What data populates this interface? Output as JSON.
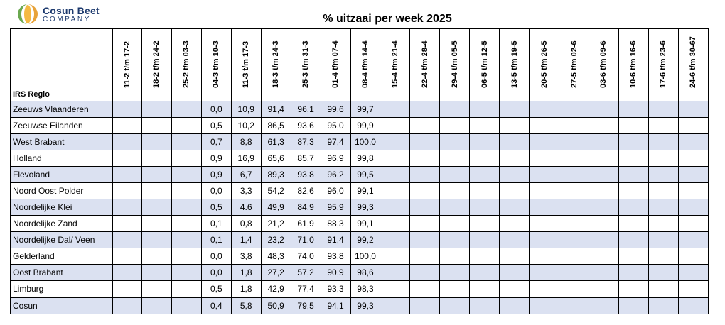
{
  "brand": {
    "name": "Cosun Beet",
    "sub": "COMPANY",
    "icon": "cosun-logo-icon",
    "colors": [
      "#e8a33a",
      "#6aa84f",
      "#1d3a6e"
    ]
  },
  "title": "% uitzaai per week 2025",
  "table": {
    "region_header": "IRS Regio",
    "weeks": [
      "11-2 t/m 17-2",
      "18-2 t/m 24-2",
      "25-2 t/m 03-3",
      "04-3 t/m 10-3",
      "11-3 t/m 17-3",
      "18-3 t/m 24-3",
      "25-3 t/m 31-3",
      "01-4 t/m 07-4",
      "08-4 t/m 14-4",
      "15-4 t/m 21-4",
      "22-4 t/m 28-4",
      "29-4 t/m 05-5",
      "06-5 t/m 12-5",
      "13-5 t/m 19-5",
      "20-5 t/m 26-5",
      "27-5 t/m 02-6",
      "03-6 t/m 09-6",
      "10-6 t/m 16-6",
      "17-6 t/m 23-6",
      "24-6 t/m 30-67"
    ],
    "rows": [
      {
        "region": "Zeeuws Vlaanderen",
        "values": [
          "",
          "",
          "",
          "0,0",
          "10,9",
          "91,4",
          "96,1",
          "99,6",
          "99,7",
          "",
          "",
          "",
          "",
          "",
          "",
          "",
          "",
          "",
          "",
          ""
        ]
      },
      {
        "region": "Zeeuwse Eilanden",
        "values": [
          "",
          "",
          "",
          "0,5",
          "10,2",
          "86,5",
          "93,6",
          "95,0",
          "99,9",
          "",
          "",
          "",
          "",
          "",
          "",
          "",
          "",
          "",
          "",
          ""
        ]
      },
      {
        "region": "West Brabant",
        "values": [
          "",
          "",
          "",
          "0,7",
          "8,8",
          "61,3",
          "87,3",
          "97,4",
          "100,0",
          "",
          "",
          "",
          "",
          "",
          "",
          "",
          "",
          "",
          "",
          ""
        ]
      },
      {
        "region": "Holland",
        "values": [
          "",
          "",
          "",
          "0,9",
          "16,9",
          "65,6",
          "85,7",
          "96,9",
          "99,8",
          "",
          "",
          "",
          "",
          "",
          "",
          "",
          "",
          "",
          "",
          ""
        ]
      },
      {
        "region": "Flevoland",
        "values": [
          "",
          "",
          "",
          "0,9",
          "6,7",
          "89,3",
          "93,8",
          "96,2",
          "99,5",
          "",
          "",
          "",
          "",
          "",
          "",
          "",
          "",
          "",
          "",
          ""
        ]
      },
      {
        "region": "Noord Oost Polder",
        "values": [
          "",
          "",
          "",
          "0,0",
          "3,3",
          "54,2",
          "82,6",
          "96,0",
          "99,1",
          "",
          "",
          "",
          "",
          "",
          "",
          "",
          "",
          "",
          "",
          ""
        ]
      },
      {
        "region": "Noordelijke Klei",
        "values": [
          "",
          "",
          "",
          "0,5",
          "4.6",
          "49,9",
          "84,9",
          "95,9",
          "99,3",
          "",
          "",
          "",
          "",
          "",
          "",
          "",
          "",
          "",
          "",
          ""
        ]
      },
      {
        "region": "Noordelijke Zand",
        "values": [
          "",
          "",
          "",
          "0,1",
          "0,8",
          "21,2",
          "61,9",
          "88,3",
          "99,1",
          "",
          "",
          "",
          "",
          "",
          "",
          "",
          "",
          "",
          "",
          ""
        ]
      },
      {
        "region": "Noordelijke Dal/ Veen",
        "values": [
          "",
          "",
          "",
          "0,1",
          "1,4",
          "23,2",
          "71,0",
          "91,4",
          "99,2",
          "",
          "",
          "",
          "",
          "",
          "",
          "",
          "",
          "",
          "",
          ""
        ]
      },
      {
        "region": "Gelderland",
        "values": [
          "",
          "",
          "",
          "0,0",
          "3,8",
          "48,3",
          "74,0",
          "93,8",
          "100,0",
          "",
          "",
          "",
          "",
          "",
          "",
          "",
          "",
          "",
          "",
          ""
        ]
      },
      {
        "region": "Oost Brabant",
        "values": [
          "",
          "",
          "",
          "0,0",
          "1,8",
          "27,2",
          "57,2",
          "90,9",
          "98,6",
          "",
          "",
          "",
          "",
          "",
          "",
          "",
          "",
          "",
          "",
          ""
        ]
      },
      {
        "region": "Limburg",
        "values": [
          "",
          "",
          "",
          "0,5",
          "1,8",
          "42,9",
          "77,4",
          "93,3",
          "98,3",
          "",
          "",
          "",
          "",
          "",
          "",
          "",
          "",
          "",
          "",
          ""
        ]
      },
      {
        "region": "Cosun",
        "values": [
          "",
          "",
          "",
          "0,4",
          "5,8",
          "50,9",
          "79,5",
          "94,1",
          "99,3",
          "",
          "",
          "",
          "",
          "",
          "",
          "",
          "",
          "",
          "",
          ""
        ]
      }
    ]
  }
}
